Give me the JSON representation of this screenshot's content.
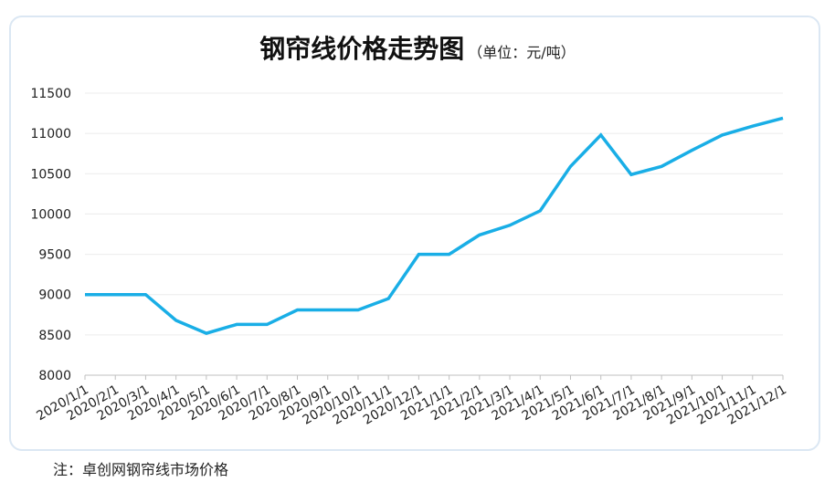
{
  "chart_data": {
    "type": "line",
    "title": "钢帘线价格走势图",
    "subtitle": "（单位：元/吨）",
    "categories": [
      "2020/1/1",
      "2020/2/1",
      "2020/3/1",
      "2020/4/1",
      "2020/5/1",
      "2020/6/1",
      "2020/7/1",
      "2020/8/1",
      "2020/9/1",
      "2020/10/1",
      "2020/11/1",
      "2020/12/1",
      "2021/1/1",
      "2021/2/1",
      "2021/3/1",
      "2021/4/1",
      "2021/5/1",
      "2021/6/1",
      "2021/7/1",
      "2021/8/1",
      "2021/9/1",
      "2021/10/1",
      "2021/11/1",
      "2021/12/1"
    ],
    "series": [
      {
        "values": [
          9000,
          9000,
          9000,
          8680,
          8520,
          8630,
          8630,
          8810,
          8810,
          8810,
          8950,
          9500,
          9500,
          9740,
          9860,
          10040,
          10590,
          10980,
          10490,
          10590,
          10790,
          10980,
          11090,
          11190
        ]
      }
    ],
    "ylim": [
      8000,
      11500
    ],
    "yticks": [
      8000,
      8500,
      9000,
      9500,
      10000,
      10500,
      11000,
      11500
    ],
    "grid": true,
    "line_color": "#19aee6"
  },
  "footnote": "注：卓创网钢帘线市场价格"
}
